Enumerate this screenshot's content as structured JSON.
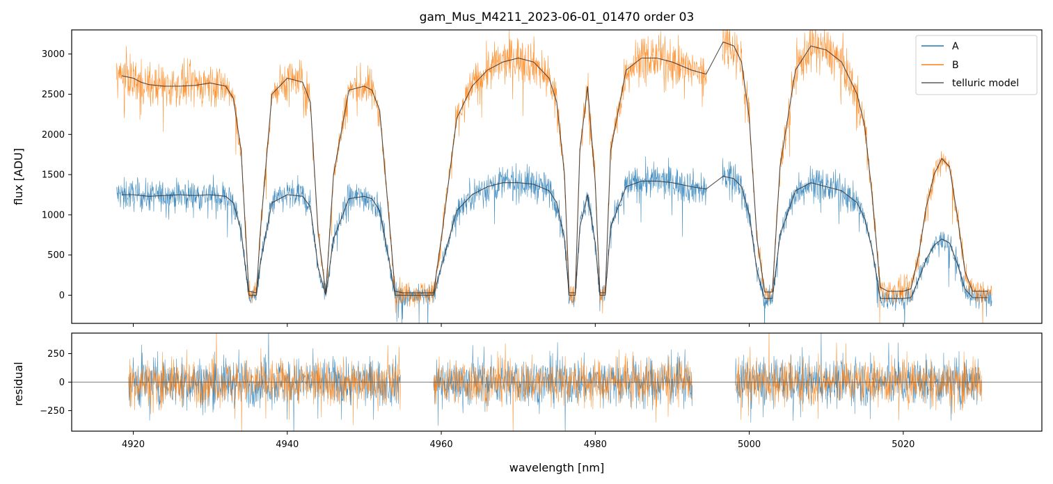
{
  "chart_data": [
    {
      "type": "line",
      "title": "gam_Mus_M4211_2023-06-01_01470  order 03",
      "xlabel": "",
      "ylabel": "flux [ADU]",
      "xlim": [
        4912,
        5038
      ],
      "ylim": [
        -350,
        3300
      ],
      "yticks": [
        0,
        500,
        1000,
        1500,
        2000,
        2500,
        3000
      ],
      "xticks": [
        4920,
        4940,
        4960,
        4980,
        5000,
        5020
      ],
      "xtick_labels_shown": false,
      "legend": {
        "position": "top-right",
        "entries": [
          "A",
          "B",
          "telluric model"
        ]
      },
      "colors": {
        "A": "#1f77b4",
        "B": "#ff7f0e",
        "model": "#333333"
      },
      "x_range_data": [
        4917.8,
        5031.5
      ],
      "gaps": [
        [
          4994.5,
          4996.5
        ]
      ],
      "series": [
        {
          "name": "B",
          "model_x": [
            4918.5,
            4920,
            4921,
            4922,
            4924,
            4926,
            4928,
            4930,
            4932,
            4933,
            4934,
            4935,
            4936,
            4936.5,
            4938,
            4940,
            4942,
            4943,
            4944,
            4945,
            4946,
            4948,
            4950,
            4951,
            4952,
            4953,
            4954,
            4955,
            4957,
            4958,
            4959,
            4960,
            4962,
            4964,
            4966,
            4968,
            4970,
            4972,
            4974,
            4975,
            4976,
            4976.6,
            4977.4,
            4978,
            4979,
            4980,
            4980.6,
            4981.3,
            4982,
            4984,
            4986,
            4988,
            4990,
            4992.5,
            4994.4,
            4996.6,
            4998,
            4999,
            5000,
            5001,
            5002,
            5003,
            5004,
            5006,
            5008,
            5010,
            5012,
            5014,
            5015,
            5016,
            5017,
            5018,
            5020,
            5021,
            5022,
            5023,
            5024,
            5025,
            5026,
            5027,
            5028,
            5029,
            5030,
            5031
          ],
          "model_y": [
            2730,
            2700,
            2650,
            2620,
            2600,
            2600,
            2610,
            2640,
            2600,
            2450,
            1800,
            50,
            30,
            800,
            2500,
            2700,
            2650,
            2400,
            800,
            20,
            1500,
            2550,
            2600,
            2550,
            2300,
            1200,
            50,
            30,
            30,
            30,
            30,
            700,
            2200,
            2600,
            2800,
            2900,
            2950,
            2900,
            2700,
            2400,
            1500,
            30,
            30,
            1800,
            2600,
            1400,
            30,
            30,
            1800,
            2800,
            2950,
            2950,
            2900,
            2800,
            2750,
            3150,
            3100,
            2900,
            2200,
            700,
            40,
            40,
            1600,
            2800,
            3100,
            3050,
            2900,
            2500,
            2100,
            1200,
            100,
            50,
            50,
            80,
            500,
            1100,
            1500,
            1700,
            1600,
            1000,
            300,
            50,
            50,
            50
          ]
        },
        {
          "name": "A",
          "model_x": [
            4918.5,
            4920,
            4921,
            4922,
            4924,
            4926,
            4928,
            4930,
            4932,
            4933,
            4934,
            4935,
            4936,
            4936.5,
            4938,
            4940,
            4942,
            4943,
            4944,
            4945,
            4946,
            4948,
            4950,
            4951,
            4952,
            4953,
            4954,
            4955,
            4957,
            4958,
            4959,
            4960,
            4962,
            4964,
            4966,
            4968,
            4970,
            4972,
            4974,
            4975,
            4976,
            4976.6,
            4977.4,
            4978,
            4979,
            4980,
            4980.6,
            4981.3,
            4982,
            4984,
            4986,
            4988,
            4990,
            4992.5,
            4994.4,
            4996.6,
            4998,
            4999,
            5000,
            5001,
            5002,
            5003,
            5004,
            5006,
            5008,
            5010,
            5012,
            5014,
            5015,
            5016,
            5017,
            5018,
            5020,
            5021,
            5022,
            5023,
            5024,
            5025,
            5026,
            5027,
            5028,
            5029,
            5030,
            5031
          ],
          "model_y": [
            1250,
            1250,
            1240,
            1230,
            1240,
            1250,
            1240,
            1250,
            1230,
            1150,
            800,
            0,
            0,
            400,
            1150,
            1250,
            1230,
            1100,
            350,
            0,
            700,
            1200,
            1230,
            1200,
            1050,
            550,
            0,
            0,
            0,
            0,
            0,
            350,
            1050,
            1250,
            1350,
            1400,
            1400,
            1380,
            1300,
            1150,
            700,
            0,
            0,
            850,
            1250,
            650,
            0,
            0,
            850,
            1350,
            1420,
            1420,
            1400,
            1350,
            1320,
            1480,
            1450,
            1350,
            1000,
            300,
            -40,
            -40,
            750,
            1300,
            1400,
            1350,
            1300,
            1150,
            950,
            550,
            -40,
            -40,
            -40,
            -30,
            200,
            450,
            620,
            700,
            650,
            400,
            80,
            -30,
            -30,
            -30
          ]
        }
      ]
    },
    {
      "type": "line",
      "title": "",
      "xlabel": "wavelength [nm]",
      "ylabel": "residual",
      "xlim": [
        4912,
        5038
      ],
      "ylim": [
        -430,
        430
      ],
      "yticks": [
        -250,
        0,
        250
      ],
      "ytick_labels": [
        "−250",
        "0",
        "250"
      ],
      "xticks": [
        4920,
        4940,
        4960,
        4980,
        5000,
        5020
      ],
      "segments": [
        [
          4919.4,
          4954.7
        ],
        [
          4959.0,
          4992.6
        ],
        [
          4998.2,
          5030.2
        ]
      ],
      "residual_amplitude": {
        "A": 150,
        "B": 140
      },
      "series": [
        {
          "name": "A",
          "color": "#1f77b4"
        },
        {
          "name": "B",
          "color": "#ff7f0e"
        }
      ]
    }
  ]
}
